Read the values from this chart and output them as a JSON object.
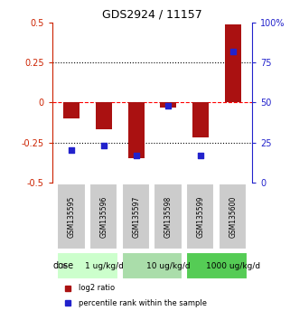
{
  "title": "GDS2924 / 11157",
  "samples": [
    "GSM135595",
    "GSM135596",
    "GSM135597",
    "GSM135598",
    "GSM135599",
    "GSM135600"
  ],
  "log2_ratio": [
    -0.1,
    -0.17,
    -0.35,
    -0.03,
    -0.22,
    0.49
  ],
  "percentile": [
    20,
    23,
    17,
    48,
    17,
    82
  ],
  "ylim_left": [
    -0.5,
    0.5
  ],
  "ylim_right": [
    0,
    100
  ],
  "yticks_left": [
    -0.5,
    -0.25,
    0,
    0.25,
    0.5
  ],
  "ytick_labels_left": [
    "-0.5",
    "-0.25",
    "0",
    "0.25",
    "0.5"
  ],
  "yticks_right": [
    0,
    25,
    50,
    75,
    100
  ],
  "ytick_labels_right": [
    "0",
    "25",
    "50",
    "75",
    "100%"
  ],
  "bar_color": "#aa1111",
  "scatter_color": "#2222cc",
  "left_tick_color": "#cc2200",
  "right_tick_color": "#2222cc",
  "dose_groups": [
    {
      "label": "1 ug/kg/d",
      "start": 0,
      "end": 2,
      "color": "#ccffcc"
    },
    {
      "label": "10 ug/kg/d",
      "start": 2,
      "end": 4,
      "color": "#aaddaa"
    },
    {
      "label": "1000 ug/kg/d",
      "start": 4,
      "end": 6,
      "color": "#55cc55"
    }
  ],
  "dose_label": "dose",
  "legend_red_label": "log2 ratio",
  "legend_blue_label": "percentile rank within the sample",
  "bg_color": "#ffffff",
  "sample_box_color": "#cccccc"
}
